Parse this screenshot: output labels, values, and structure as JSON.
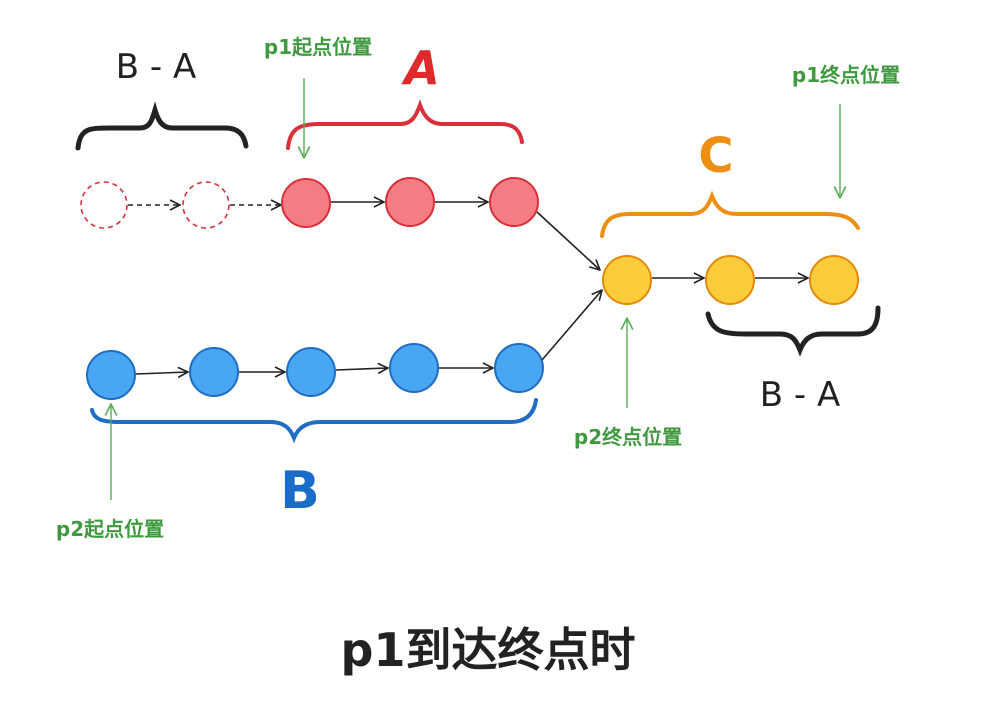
{
  "labels": {
    "b_minus_a_top": "B - A",
    "a": "A",
    "p1_start": "p1起点位置",
    "p1_end": "p1终点位置",
    "c": "C",
    "b_minus_a_right": "B - A",
    "p2_end": "p2终点位置",
    "b": "B",
    "p2_start": "p2起点位置"
  },
  "caption": "p1到达终点时",
  "colors": {
    "red_fill": "#f47c84",
    "red_stroke": "#d9303a",
    "blue_fill": "#48a6f2",
    "blue_stroke": "#1f6dc4",
    "yellow_fill": "#fbcc3c",
    "yellow_stroke": "#e8890c",
    "orange_brace": "#ee8f14",
    "green_text": "#3f9a3f",
    "green_arrow": "#56b056",
    "red_label": "#dd2a2a",
    "blue_label": "#1a6cc8",
    "ink": "#222222"
  }
}
